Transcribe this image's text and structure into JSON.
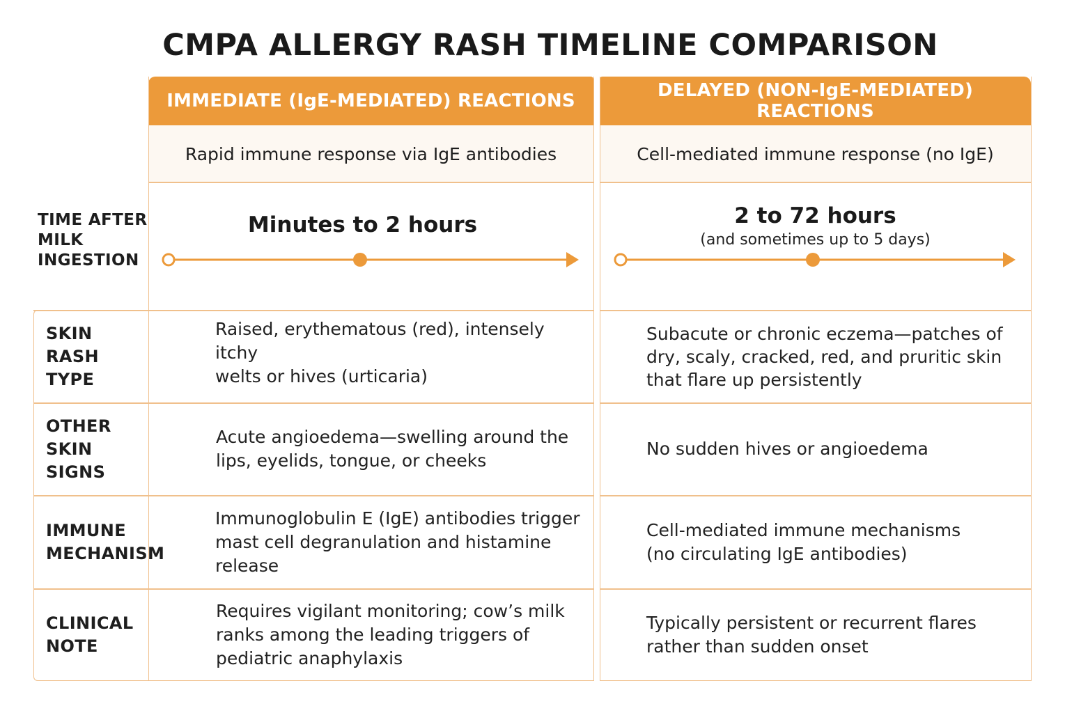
{
  "title": "CMPA ALLERGY RASH TIMELINE COMPARISON",
  "columns": [
    {
      "header": "IMMEDIATE (IgE-MEDIATED) REACTIONS",
      "description": "Rapid immune response via IgE antibodies",
      "time_main": "Minutes to 2 hours",
      "time_sub": "",
      "rows": {
        "skin_rash_type": [
          "Raised, erythematous (red), intensely itchy",
          "welts or hives (urticaria)"
        ],
        "other_skin_signs": [
          "Acute angioedema—swelling around the",
          "lips, eyelids, tongue, or cheeks"
        ],
        "immune_mechanism": [
          "Immunoglobulin E (IgE) antibodies trigger",
          "mast cell degranulation and histamine release"
        ],
        "clinical_note": [
          "Requires vigilant monitoring; cow’s milk",
          "ranks among the leading triggers of",
          "pediatric anaphylaxis"
        ]
      }
    },
    {
      "header": "DELAYED (NON-IgE-MEDIATED) REACTIONS",
      "description": "Cell-mediated immune response (no IgE)",
      "time_main": "2 to 72 hours",
      "time_sub": "(and sometimes up to 5 days)",
      "rows": {
        "skin_rash_type": [
          "Subacute or chronic eczema—patches of",
          "dry, scaly, cracked, red, and pruritic skin",
          "that flare up persistently"
        ],
        "other_skin_signs": [
          "No sudden hives or angioedema"
        ],
        "immune_mechanism": [
          "Cell-mediated immune mechanisms",
          "(no circulating IgE antibodies)"
        ],
        "clinical_note": [
          "Typically persistent or recurrent flares",
          "rather than sudden onset"
        ]
      }
    }
  ],
  "row_labels": {
    "time_after": [
      "TIME AFTER",
      "MILK",
      "INGESTION"
    ],
    "skin_rash_type": [
      "SKIN RASH",
      "TYPE"
    ],
    "other_skin_signs": [
      "OTHER",
      "SKIN SIGNS"
    ],
    "immune_mechanism": [
      "IMMUNE",
      "MECHANISM"
    ],
    "clinical_note": [
      "CLINICAL",
      "NOTE"
    ]
  },
  "colors": {
    "accent": "#ec9a3a",
    "border": "#f0c08c",
    "cell_background": "#fdf8f2"
  }
}
